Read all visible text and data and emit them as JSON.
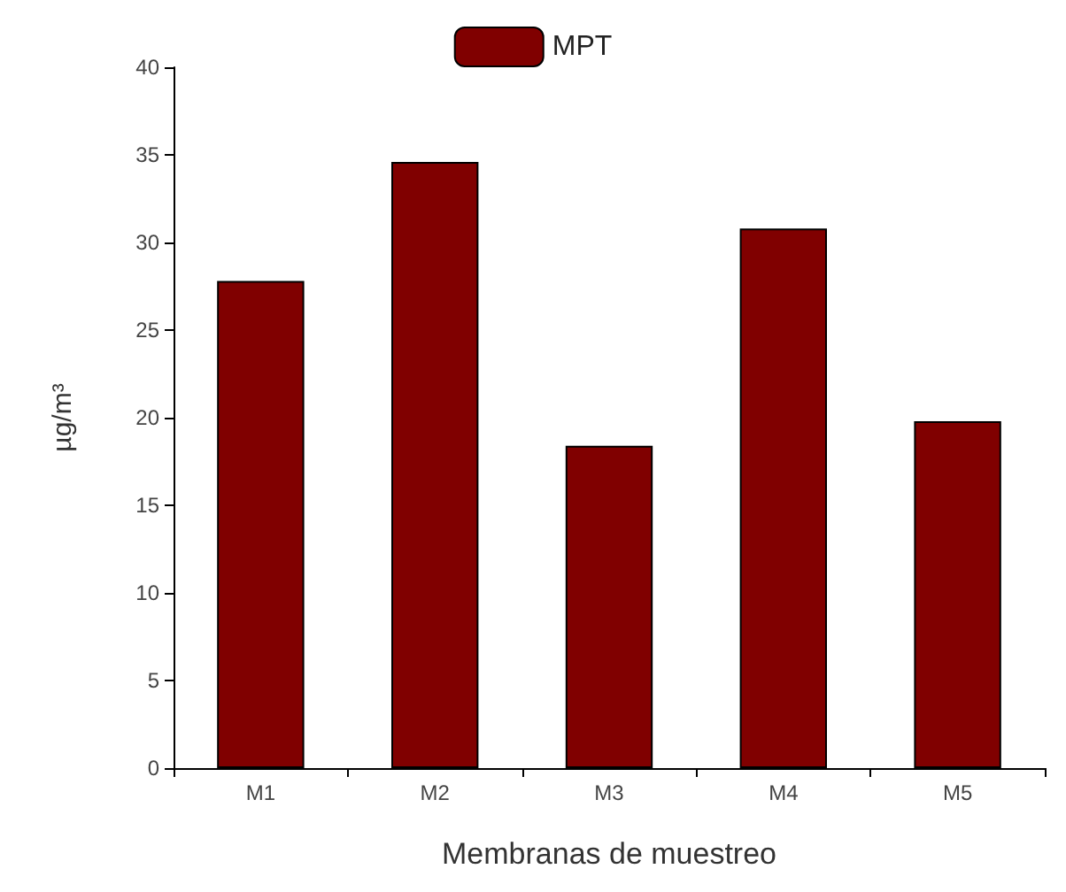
{
  "chart_data": {
    "type": "bar",
    "xlabel": "Membranas de muestreo",
    "ylabel": "µg/m³",
    "categories": [
      "M1",
      "M2",
      "M3",
      "M4",
      "M5"
    ],
    "series": [
      {
        "name": "MPT",
        "color": "#800000",
        "values": [
          27.8,
          34.6,
          18.4,
          30.8,
          19.8
        ]
      }
    ],
    "ylim": [
      0,
      40
    ],
    "yticks": [
      0,
      5,
      10,
      15,
      20,
      25,
      30,
      35,
      40
    ],
    "grid": false,
    "legend": "top"
  }
}
